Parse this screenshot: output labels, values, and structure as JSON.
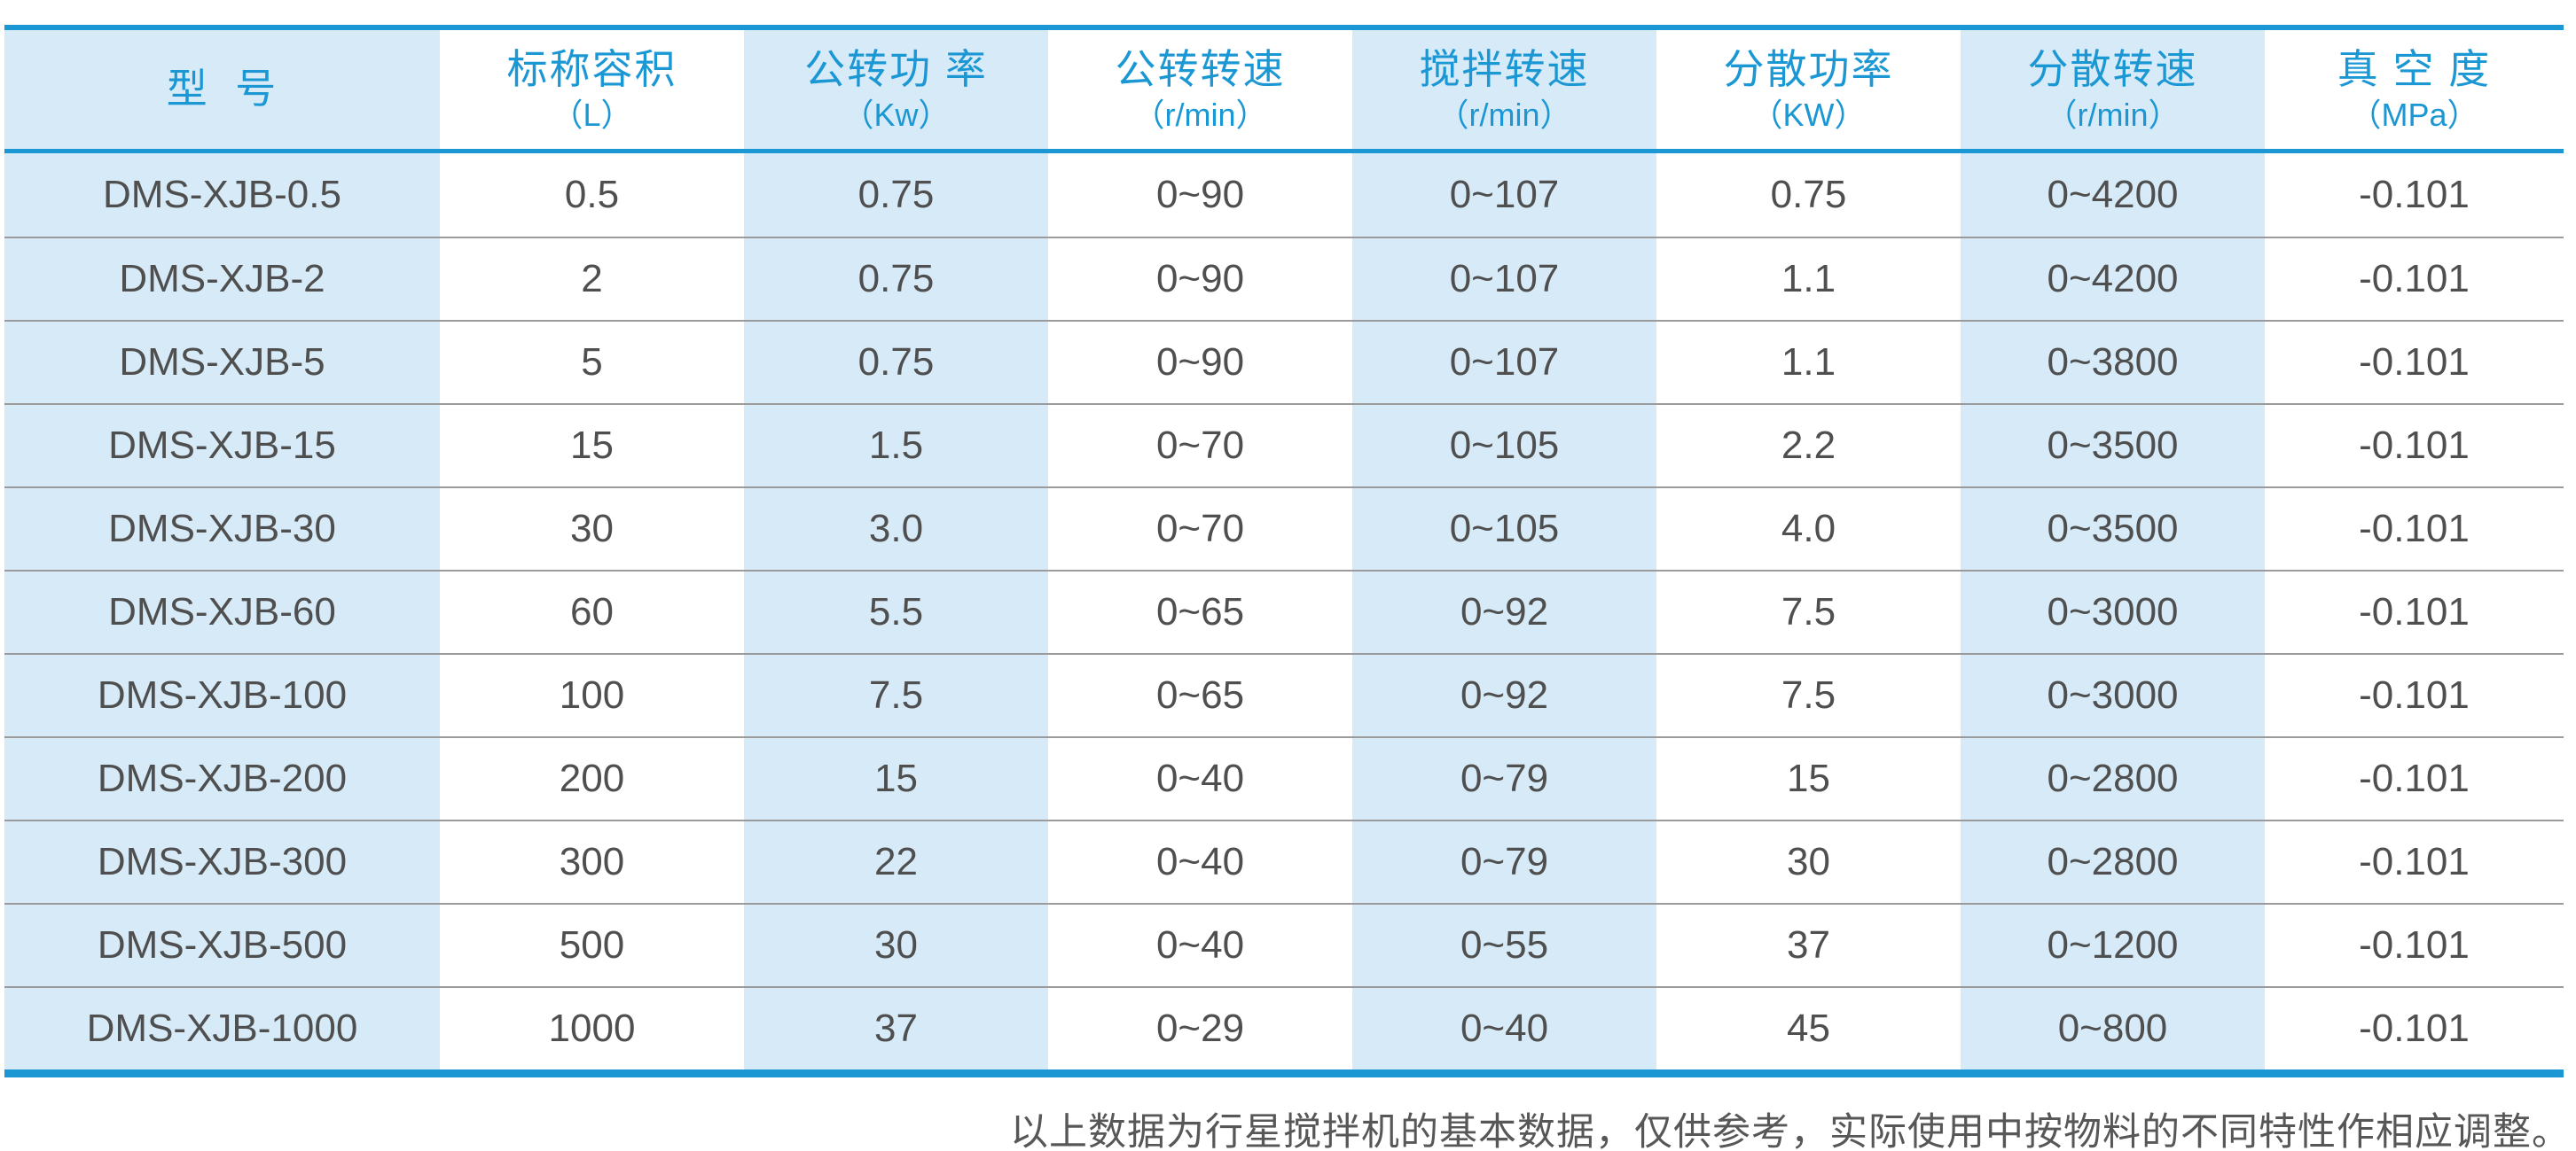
{
  "table": {
    "columns": [
      {
        "title": "型  号",
        "unit": ""
      },
      {
        "title": "标称容积",
        "unit": "（L）"
      },
      {
        "title": "公转功 率",
        "unit": "（Kw）"
      },
      {
        "title": "公转转速",
        "unit": "（r/min）"
      },
      {
        "title": "搅拌转速",
        "unit": "（r/min）"
      },
      {
        "title": "分散功率",
        "unit": "（KW）"
      },
      {
        "title": "分散转速",
        "unit": "（r/min）"
      },
      {
        "title": "真 空 度",
        "unit": "（MPa）"
      }
    ],
    "rows": [
      [
        "DMS-XJB-0.5",
        "0.5",
        "0.75",
        "0~90",
        "0~107",
        "0.75",
        "0~4200",
        "-0.101"
      ],
      [
        "DMS-XJB-2",
        "2",
        "0.75",
        "0~90",
        "0~107",
        "1.1",
        "0~4200",
        "-0.101"
      ],
      [
        "DMS-XJB-5",
        "5",
        "0.75",
        "0~90",
        "0~107",
        "1.1",
        "0~3800",
        "-0.101"
      ],
      [
        "DMS-XJB-15",
        "15",
        "1.5",
        "0~70",
        "0~105",
        "2.2",
        "0~3500",
        "-0.101"
      ],
      [
        "DMS-XJB-30",
        "30",
        "3.0",
        "0~70",
        "0~105",
        "4.0",
        "0~3500",
        "-0.101"
      ],
      [
        "DMS-XJB-60",
        "60",
        "5.5",
        "0~65",
        "0~92",
        "7.5",
        "0~3000",
        "-0.101"
      ],
      [
        "DMS-XJB-100",
        "100",
        "7.5",
        "0~65",
        "0~92",
        "7.5",
        "0~3000",
        "-0.101"
      ],
      [
        "DMS-XJB-200",
        "200",
        "15",
        "0~40",
        "0~79",
        "15",
        "0~2800",
        "-0.101"
      ],
      [
        "DMS-XJB-300",
        "300",
        "22",
        "0~40",
        "0~79",
        "30",
        "0~2800",
        "-0.101"
      ],
      [
        "DMS-XJB-500",
        "500",
        "30",
        "0~40",
        "0~55",
        "37",
        "0~1200",
        "-0.101"
      ],
      [
        "DMS-XJB-1000",
        "1000",
        "37",
        "0~29",
        "0~40",
        "45",
        "0~800",
        "-0.101"
      ]
    ]
  },
  "footer": {
    "note": "以上数据为行星搅拌机的基本数据，仅供参考，实际使用中按物料的不同特性作相应调整。"
  },
  "colors": {
    "accent_blue": "#1b97d4",
    "stripe_light_blue": "#d6eaf7",
    "data_text": "#4f4f4f",
    "row_separator_gray": "#9b9b9b",
    "footnote_text": "#575757"
  }
}
